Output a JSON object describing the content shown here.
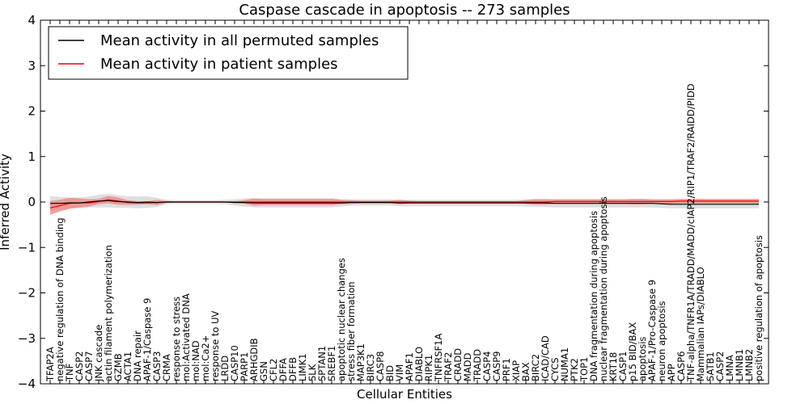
{
  "chart_data": {
    "type": "line",
    "title": "Caspase cascade in apoptosis -- 273 samples",
    "xlabel": "Cellular Entities",
    "ylabel": "Inferred Activity",
    "ylim": [
      -4,
      4
    ],
    "yticks": [
      -4,
      -3,
      -2,
      -1,
      0,
      1,
      2,
      3,
      4
    ],
    "ytick_labels": [
      "−4",
      "−3",
      "−2",
      "−1",
      "0",
      "1",
      "2",
      "3",
      "4"
    ],
    "grid": false,
    "legend_position": "top-left",
    "categories": [
      "TFAP2A",
      "negative regulation of DNA binding",
      "TNF",
      "CASP2",
      "CASP7",
      "JNK cascade",
      "actin filament polymerization",
      "GZMB",
      "ACTA1",
      "DNA repair",
      "APAF-1/Caspase 9",
      "CASP3",
      "CRMA",
      "response to stress",
      "mol:Activated DNA",
      "mol:NAD",
      "mol:Ca2+",
      "response to UV",
      "LRDD",
      "CASP10",
      "PARP1",
      "ARHGDIB",
      "GSN",
      "CFL2",
      "DFFA",
      "DFFB",
      "LIMK1",
      "SLK",
      "SPTAN1",
      "SREBF1",
      "apoptotic nuclear changes",
      "stress fiber formation",
      "MAP3K1",
      "BIRC3",
      "CASP8",
      "BID",
      "VIM",
      "APAF1",
      "DIABLO",
      "RIPK1",
      "TNFRSF1A",
      "TRAF2",
      "CRADD",
      "MADD",
      "TRADD",
      "CASP4",
      "CASP9",
      "PRF1",
      "XIAP",
      "BAX",
      "BIRC2",
      "ICAD/CAD",
      "CYCS",
      "NUMA1",
      "PTK2",
      "TOP1",
      "DNA fragmentation during apoptosis",
      "nuclear fragmentation during apoptosis",
      "KRT18",
      "CASP1",
      "p15 BID/BAX",
      "apoptosis",
      "APAF-1/Pro-Caspase 9",
      "neuron apoptosis",
      "APP",
      "CASP6",
      "TNF-alpha/TNFR1A/TRADD/MADD/cIAP2/RIP1/TRAF2/RAIDD/PIDD",
      "Mammalian IAPs/DIABLO",
      "SATB1",
      "CASP2",
      "LMNA",
      "LMNB1",
      "LMNB2",
      "positive regulation of apoptosis"
    ],
    "series": [
      {
        "name": "Mean activity in all permuted samples",
        "color": "#000000",
        "band_color": "#d9d9d9",
        "values": [
          -0.03,
          -0.03,
          -0.02,
          -0.02,
          0.0,
          0.02,
          0.03,
          0.01,
          0.0,
          -0.01,
          0.0,
          -0.01,
          0.0,
          0.0,
          0.0,
          0.0,
          0.0,
          0.0,
          0.0,
          -0.01,
          -0.01,
          -0.02,
          -0.02,
          -0.02,
          -0.02,
          -0.02,
          -0.02,
          -0.02,
          -0.02,
          -0.02,
          -0.02,
          -0.01,
          -0.01,
          -0.01,
          -0.01,
          -0.01,
          -0.02,
          -0.02,
          -0.02,
          -0.02,
          -0.02,
          -0.02,
          -0.02,
          -0.02,
          -0.02,
          -0.02,
          -0.02,
          -0.02,
          -0.02,
          -0.02,
          -0.02,
          -0.02,
          -0.03,
          -0.03,
          -0.03,
          -0.03,
          -0.03,
          -0.03,
          -0.03,
          -0.03,
          -0.03,
          -0.03,
          -0.03,
          -0.04,
          -0.05,
          -0.05,
          -0.05,
          -0.05,
          -0.05,
          -0.05,
          -0.05,
          -0.05,
          -0.05,
          -0.05
        ],
        "band_half_width": [
          0.16,
          0.14,
          0.12,
          0.12,
          0.12,
          0.14,
          0.15,
          0.14,
          0.13,
          0.13,
          0.13,
          0.1,
          0.05,
          0.04,
          0.04,
          0.04,
          0.04,
          0.04,
          0.05,
          0.07,
          0.09,
          0.1,
          0.1,
          0.1,
          0.1,
          0.1,
          0.1,
          0.1,
          0.1,
          0.1,
          0.08,
          0.07,
          0.07,
          0.07,
          0.07,
          0.07,
          0.07,
          0.07,
          0.07,
          0.07,
          0.07,
          0.07,
          0.07,
          0.07,
          0.07,
          0.07,
          0.07,
          0.07,
          0.07,
          0.08,
          0.09,
          0.09,
          0.09,
          0.09,
          0.09,
          0.09,
          0.09,
          0.09,
          0.09,
          0.09,
          0.09,
          0.09,
          0.09,
          0.09,
          0.09,
          0.09,
          0.09,
          0.09,
          0.09,
          0.09,
          0.09,
          0.09,
          0.09,
          0.09
        ]
      },
      {
        "name": "Mean activity in patient samples",
        "color": "#ff0000",
        "band_color": "#f08080",
        "values": [
          -0.13,
          -0.08,
          -0.03,
          -0.02,
          -0.02,
          0.01,
          0.05,
          0.02,
          -0.01,
          -0.02,
          -0.02,
          -0.01,
          0.0,
          0.0,
          0.0,
          0.0,
          0.0,
          0.0,
          0.0,
          0.0,
          0.0,
          0.0,
          0.0,
          0.0,
          0.0,
          0.0,
          0.0,
          0.0,
          0.0,
          0.0,
          0.0,
          0.0,
          0.0,
          0.0,
          0.0,
          0.0,
          0.0,
          0.0,
          0.0,
          0.0,
          0.0,
          0.0,
          0.0,
          0.0,
          0.0,
          0.0,
          0.0,
          0.0,
          0.0,
          0.0,
          0.0,
          0.0,
          0.01,
          0.01,
          0.01,
          0.01,
          0.01,
          0.01,
          0.01,
          0.01,
          0.01,
          0.01,
          0.01,
          0.01,
          0.01,
          0.02,
          0.02,
          0.02,
          0.02,
          0.02,
          0.02,
          0.02,
          0.02,
          0.02
        ],
        "band_half_width": [
          0.15,
          0.13,
          0.12,
          0.1,
          0.08,
          0.06,
          0.08,
          0.08,
          0.05,
          0.04,
          0.03,
          0.06,
          0.02,
          0.01,
          0.01,
          0.01,
          0.01,
          0.01,
          0.01,
          0.02,
          0.04,
          0.08,
          0.07,
          0.07,
          0.07,
          0.07,
          0.07,
          0.07,
          0.07,
          0.07,
          0.05,
          0.04,
          0.03,
          0.03,
          0.03,
          0.03,
          0.05,
          0.03,
          0.02,
          0.02,
          0.02,
          0.02,
          0.02,
          0.02,
          0.02,
          0.02,
          0.02,
          0.02,
          0.02,
          0.04,
          0.06,
          0.06,
          0.05,
          0.05,
          0.05,
          0.05,
          0.05,
          0.05,
          0.05,
          0.05,
          0.06,
          0.06,
          0.05,
          0.05,
          0.05,
          0.05,
          0.05,
          0.05,
          0.05,
          0.05,
          0.05,
          0.05,
          0.05,
          0.05
        ]
      }
    ]
  }
}
